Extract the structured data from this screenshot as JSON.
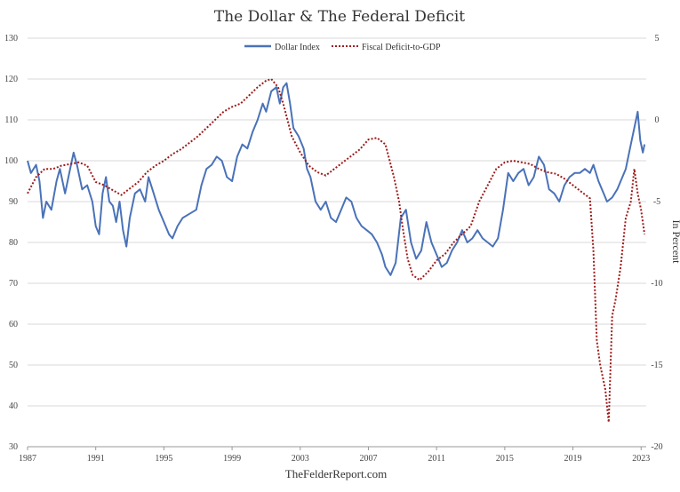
{
  "chart_data": {
    "type": "line",
    "title": "The Dollar & The Federal Deficit",
    "credit": "TheFelderReport.com",
    "y2label": "In Percent",
    "xlim": [
      1987,
      2023.3
    ],
    "ylim_left": [
      30,
      130
    ],
    "ylim_right": [
      -20,
      5
    ],
    "x_ticks": [
      1987,
      1991,
      1995,
      1999,
      2003,
      2007,
      2011,
      2015,
      2019,
      2023
    ],
    "y_ticks_left": [
      30,
      40,
      50,
      60,
      70,
      80,
      90,
      100,
      110,
      120,
      130
    ],
    "y_ticks_right": [
      -20,
      -15,
      -10,
      -5,
      0,
      5
    ],
    "grid": "horizontal",
    "legend_position": "top-center",
    "series": [
      {
        "name": "Dollar Index",
        "axis": "left",
        "color": "#4a72b8",
        "style": "solid",
        "points": [
          [
            1987.0,
            100
          ],
          [
            1987.2,
            97
          ],
          [
            1987.5,
            99
          ],
          [
            1987.7,
            95
          ],
          [
            1987.9,
            86
          ],
          [
            1988.1,
            90
          ],
          [
            1988.4,
            88
          ],
          [
            1988.7,
            95
          ],
          [
            1988.9,
            98
          ],
          [
            1989.2,
            92
          ],
          [
            1989.5,
            98
          ],
          [
            1989.7,
            102
          ],
          [
            1989.9,
            99
          ],
          [
            1990.2,
            93
          ],
          [
            1990.5,
            94
          ],
          [
            1990.8,
            90
          ],
          [
            1991.0,
            84
          ],
          [
            1991.2,
            82
          ],
          [
            1991.4,
            92
          ],
          [
            1991.6,
            96
          ],
          [
            1991.8,
            90
          ],
          [
            1992.0,
            89
          ],
          [
            1992.2,
            85
          ],
          [
            1992.4,
            90
          ],
          [
            1992.6,
            83
          ],
          [
            1992.8,
            79
          ],
          [
            1993.0,
            86
          ],
          [
            1993.3,
            92
          ],
          [
            1993.6,
            93
          ],
          [
            1993.9,
            90
          ],
          [
            1994.1,
            96
          ],
          [
            1994.4,
            92
          ],
          [
            1994.7,
            88
          ],
          [
            1995.0,
            85
          ],
          [
            1995.3,
            82
          ],
          [
            1995.5,
            81
          ],
          [
            1995.8,
            84
          ],
          [
            1996.1,
            86
          ],
          [
            1996.5,
            87
          ],
          [
            1996.9,
            88
          ],
          [
            1997.2,
            94
          ],
          [
            1997.5,
            98
          ],
          [
            1997.8,
            99
          ],
          [
            1998.1,
            101
          ],
          [
            1998.4,
            100
          ],
          [
            1998.7,
            96
          ],
          [
            1999.0,
            95
          ],
          [
            1999.3,
            101
          ],
          [
            1999.6,
            104
          ],
          [
            1999.9,
            103
          ],
          [
            2000.2,
            107
          ],
          [
            2000.5,
            110
          ],
          [
            2000.8,
            114
          ],
          [
            2001.0,
            112
          ],
          [
            2001.3,
            117
          ],
          [
            2001.6,
            118
          ],
          [
            2001.8,
            114
          ],
          [
            2002.0,
            118
          ],
          [
            2002.2,
            119
          ],
          [
            2002.4,
            114
          ],
          [
            2002.6,
            108
          ],
          [
            2002.9,
            106
          ],
          [
            2003.2,
            103
          ],
          [
            2003.4,
            98
          ],
          [
            2003.6,
            96
          ],
          [
            2003.9,
            90
          ],
          [
            2004.2,
            88
          ],
          [
            2004.5,
            90
          ],
          [
            2004.8,
            86
          ],
          [
            2005.1,
            85
          ],
          [
            2005.4,
            88
          ],
          [
            2005.7,
            91
          ],
          [
            2006.0,
            90
          ],
          [
            2006.3,
            86
          ],
          [
            2006.6,
            84
          ],
          [
            2006.9,
            83
          ],
          [
            2007.2,
            82
          ],
          [
            2007.5,
            80
          ],
          [
            2007.8,
            77
          ],
          [
            2008.0,
            74
          ],
          [
            2008.3,
            72
          ],
          [
            2008.6,
            75
          ],
          [
            2008.9,
            86
          ],
          [
            2009.2,
            88
          ],
          [
            2009.5,
            80
          ],
          [
            2009.8,
            76
          ],
          [
            2010.1,
            78
          ],
          [
            2010.4,
            85
          ],
          [
            2010.7,
            80
          ],
          [
            2011.0,
            77
          ],
          [
            2011.3,
            74
          ],
          [
            2011.6,
            75
          ],
          [
            2011.9,
            78
          ],
          [
            2012.2,
            80
          ],
          [
            2012.5,
            83
          ],
          [
            2012.8,
            80
          ],
          [
            2013.1,
            81
          ],
          [
            2013.4,
            83
          ],
          [
            2013.7,
            81
          ],
          [
            2014.0,
            80
          ],
          [
            2014.3,
            79
          ],
          [
            2014.6,
            81
          ],
          [
            2014.9,
            88
          ],
          [
            2015.2,
            97
          ],
          [
            2015.5,
            95
          ],
          [
            2015.8,
            97
          ],
          [
            2016.1,
            98
          ],
          [
            2016.4,
            94
          ],
          [
            2016.7,
            96
          ],
          [
            2017.0,
            101
          ],
          [
            2017.3,
            99
          ],
          [
            2017.6,
            93
          ],
          [
            2017.9,
            92
          ],
          [
            2018.2,
            90
          ],
          [
            2018.5,
            94
          ],
          [
            2018.8,
            96
          ],
          [
            2019.1,
            97
          ],
          [
            2019.4,
            97
          ],
          [
            2019.7,
            98
          ],
          [
            2020.0,
            97
          ],
          [
            2020.2,
            99
          ],
          [
            2020.5,
            95
          ],
          [
            2020.8,
            92
          ],
          [
            2021.0,
            90
          ],
          [
            2021.3,
            91
          ],
          [
            2021.6,
            93
          ],
          [
            2021.9,
            96
          ],
          [
            2022.1,
            98
          ],
          [
            2022.4,
            104
          ],
          [
            2022.7,
            110
          ],
          [
            2022.8,
            112
          ],
          [
            2022.95,
            105
          ],
          [
            2023.1,
            102
          ],
          [
            2023.2,
            104
          ]
        ]
      },
      {
        "name": "Fiscal Deficit-to-GDP",
        "axis": "right",
        "color": "#9e1b1b",
        "style": "dotted",
        "points": [
          [
            1987.0,
            -4.5
          ],
          [
            1987.5,
            -3.5
          ],
          [
            1988.0,
            -3.0
          ],
          [
            1988.5,
            -3.0
          ],
          [
            1989.0,
            -2.8
          ],
          [
            1989.5,
            -2.7
          ],
          [
            1990.0,
            -2.6
          ],
          [
            1990.5,
            -2.8
          ],
          [
            1991.0,
            -3.8
          ],
          [
            1991.5,
            -4.0
          ],
          [
            1992.0,
            -4.3
          ],
          [
            1992.5,
            -4.6
          ],
          [
            1993.0,
            -4.2
          ],
          [
            1993.5,
            -3.8
          ],
          [
            1994.0,
            -3.2
          ],
          [
            1994.5,
            -2.8
          ],
          [
            1995.0,
            -2.5
          ],
          [
            1995.5,
            -2.1
          ],
          [
            1996.0,
            -1.8
          ],
          [
            1996.5,
            -1.4
          ],
          [
            1997.0,
            -1.0
          ],
          [
            1997.5,
            -0.5
          ],
          [
            1998.0,
            0.0
          ],
          [
            1998.5,
            0.5
          ],
          [
            1999.0,
            0.8
          ],
          [
            1999.5,
            1.0
          ],
          [
            2000.0,
            1.5
          ],
          [
            2000.5,
            2.0
          ],
          [
            2001.0,
            2.4
          ],
          [
            2001.3,
            2.5
          ],
          [
            2001.7,
            2.0
          ],
          [
            2002.0,
            1.0
          ],
          [
            2002.5,
            -1.0
          ],
          [
            2003.0,
            -2.0
          ],
          [
            2003.5,
            -2.8
          ],
          [
            2004.0,
            -3.2
          ],
          [
            2004.5,
            -3.4
          ],
          [
            2005.0,
            -3.0
          ],
          [
            2005.5,
            -2.6
          ],
          [
            2006.0,
            -2.2
          ],
          [
            2006.5,
            -1.8
          ],
          [
            2007.0,
            -1.2
          ],
          [
            2007.5,
            -1.1
          ],
          [
            2008.0,
            -1.5
          ],
          [
            2008.5,
            -3.5
          ],
          [
            2008.8,
            -5.0
          ],
          [
            2009.0,
            -6.5
          ],
          [
            2009.3,
            -8.5
          ],
          [
            2009.6,
            -9.5
          ],
          [
            2010.0,
            -9.8
          ],
          [
            2010.5,
            -9.3
          ],
          [
            2011.0,
            -8.6
          ],
          [
            2011.5,
            -8.2
          ],
          [
            2012.0,
            -7.5
          ],
          [
            2012.5,
            -7.0
          ],
          [
            2013.0,
            -6.5
          ],
          [
            2013.5,
            -5.0
          ],
          [
            2014.0,
            -4.0
          ],
          [
            2014.5,
            -3.0
          ],
          [
            2015.0,
            -2.6
          ],
          [
            2015.5,
            -2.5
          ],
          [
            2016.0,
            -2.6
          ],
          [
            2016.5,
            -2.7
          ],
          [
            2017.0,
            -3.0
          ],
          [
            2017.5,
            -3.2
          ],
          [
            2018.0,
            -3.3
          ],
          [
            2018.5,
            -3.6
          ],
          [
            2019.0,
            -4.0
          ],
          [
            2019.5,
            -4.4
          ],
          [
            2020.0,
            -4.8
          ],
          [
            2020.2,
            -8.0
          ],
          [
            2020.4,
            -13.5
          ],
          [
            2020.6,
            -15.0
          ],
          [
            2020.9,
            -16.5
          ],
          [
            2021.1,
            -18.5
          ],
          [
            2021.3,
            -12.0
          ],
          [
            2021.5,
            -11.0
          ],
          [
            2021.8,
            -9.0
          ],
          [
            2022.1,
            -6.0
          ],
          [
            2022.4,
            -5.0
          ],
          [
            2022.6,
            -3.0
          ],
          [
            2022.8,
            -4.5
          ],
          [
            2023.0,
            -5.5
          ],
          [
            2023.2,
            -7.0
          ]
        ]
      }
    ]
  }
}
